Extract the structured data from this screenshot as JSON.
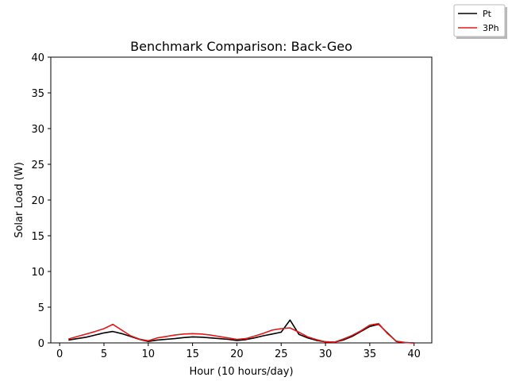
{
  "chart_data": {
    "type": "line",
    "title": "Benchmark Comparison: Back-Geo",
    "xlabel": "Hour (10 hours/day)",
    "ylabel": "Solar Load (W)",
    "xlim": [
      -1,
      42
    ],
    "ylim": [
      0,
      40
    ],
    "xticks": [
      0,
      5,
      10,
      15,
      20,
      25,
      30,
      35,
      40
    ],
    "yticks": [
      0,
      5,
      10,
      15,
      20,
      25,
      30,
      35,
      40
    ],
    "grid": false,
    "legend_position": "top-right outside",
    "series": [
      {
        "name": "Pt",
        "color": "#000000",
        "points": [
          [
            1,
            0.4
          ],
          [
            2,
            0.6
          ],
          [
            3,
            0.8
          ],
          [
            4,
            1.1
          ],
          [
            5,
            1.4
          ],
          [
            6,
            1.6
          ],
          [
            7,
            1.3
          ],
          [
            8,
            0.9
          ],
          [
            9,
            0.5
          ],
          [
            10,
            0.2
          ],
          [
            11,
            0.4
          ],
          [
            12,
            0.5
          ],
          [
            13,
            0.6
          ],
          [
            14,
            0.75
          ],
          [
            15,
            0.85
          ],
          [
            16,
            0.8
          ],
          [
            17,
            0.7
          ],
          [
            18,
            0.6
          ],
          [
            19,
            0.5
          ],
          [
            20,
            0.35
          ],
          [
            21,
            0.45
          ],
          [
            22,
            0.7
          ],
          [
            23,
            1.0
          ],
          [
            24,
            1.25
          ],
          [
            25,
            1.5
          ],
          [
            26,
            3.2
          ],
          [
            27,
            1.2
          ],
          [
            28,
            0.7
          ],
          [
            29,
            0.35
          ],
          [
            30,
            0.15
          ],
          [
            31,
            0.1
          ],
          [
            32,
            0.4
          ],
          [
            33,
            0.9
          ],
          [
            34,
            1.6
          ],
          [
            35,
            2.3
          ],
          [
            36,
            2.6
          ],
          [
            37,
            1.4
          ],
          [
            38,
            0.2
          ],
          [
            39,
            0.05
          ],
          [
            40,
            0.0
          ]
        ]
      },
      {
        "name": "3Ph",
        "color": "#e31a1c",
        "points": [
          [
            1,
            0.55
          ],
          [
            2,
            0.9
          ],
          [
            3,
            1.25
          ],
          [
            4,
            1.6
          ],
          [
            5,
            2.0
          ],
          [
            6,
            2.6
          ],
          [
            7,
            1.8
          ],
          [
            8,
            1.0
          ],
          [
            9,
            0.55
          ],
          [
            10,
            0.3
          ],
          [
            11,
            0.7
          ],
          [
            12,
            0.9
          ],
          [
            13,
            1.1
          ],
          [
            14,
            1.25
          ],
          [
            15,
            1.3
          ],
          [
            16,
            1.25
          ],
          [
            17,
            1.1
          ],
          [
            18,
            0.9
          ],
          [
            19,
            0.7
          ],
          [
            20,
            0.5
          ],
          [
            21,
            0.6
          ],
          [
            22,
            0.95
          ],
          [
            23,
            1.35
          ],
          [
            24,
            1.8
          ],
          [
            25,
            2.0
          ],
          [
            26,
            2.1
          ],
          [
            27,
            1.5
          ],
          [
            28,
            0.85
          ],
          [
            29,
            0.45
          ],
          [
            30,
            0.15
          ],
          [
            31,
            0.1
          ],
          [
            32,
            0.55
          ],
          [
            33,
            1.05
          ],
          [
            34,
            1.7
          ],
          [
            35,
            2.5
          ],
          [
            36,
            2.7
          ],
          [
            37,
            1.3
          ],
          [
            38,
            0.25
          ],
          [
            39,
            0.05
          ],
          [
            40,
            0.0
          ]
        ]
      }
    ]
  }
}
